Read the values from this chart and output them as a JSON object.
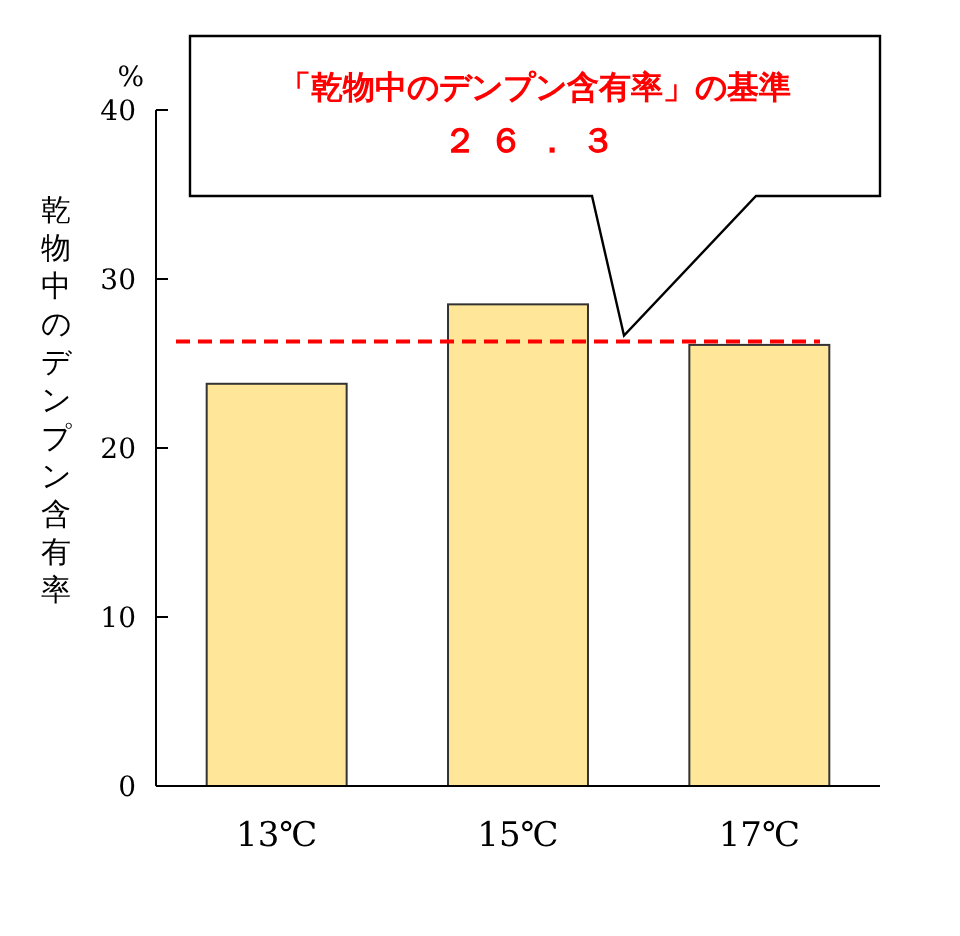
{
  "chart_data": {
    "type": "bar",
    "ylabel": "乾物中のデンプン含有率",
    "categories": [
      "13℃",
      "15℃",
      "17℃"
    ],
    "values": [
      23.8,
      28.5,
      26.1
    ],
    "color": "#ffe699",
    "ylim": [
      0,
      40
    ],
    "yticks": [
      0,
      10,
      20,
      30,
      40
    ],
    "grid": false,
    "ref_lines": [
      {
        "axis": "y",
        "value": 26.3,
        "label": "「乾物中のデンプン含有率」の基準",
        "color": "#ff0000",
        "line_style": "dashed"
      }
    ],
    "annotations": [
      "%",
      "２６．３"
    ]
  }
}
